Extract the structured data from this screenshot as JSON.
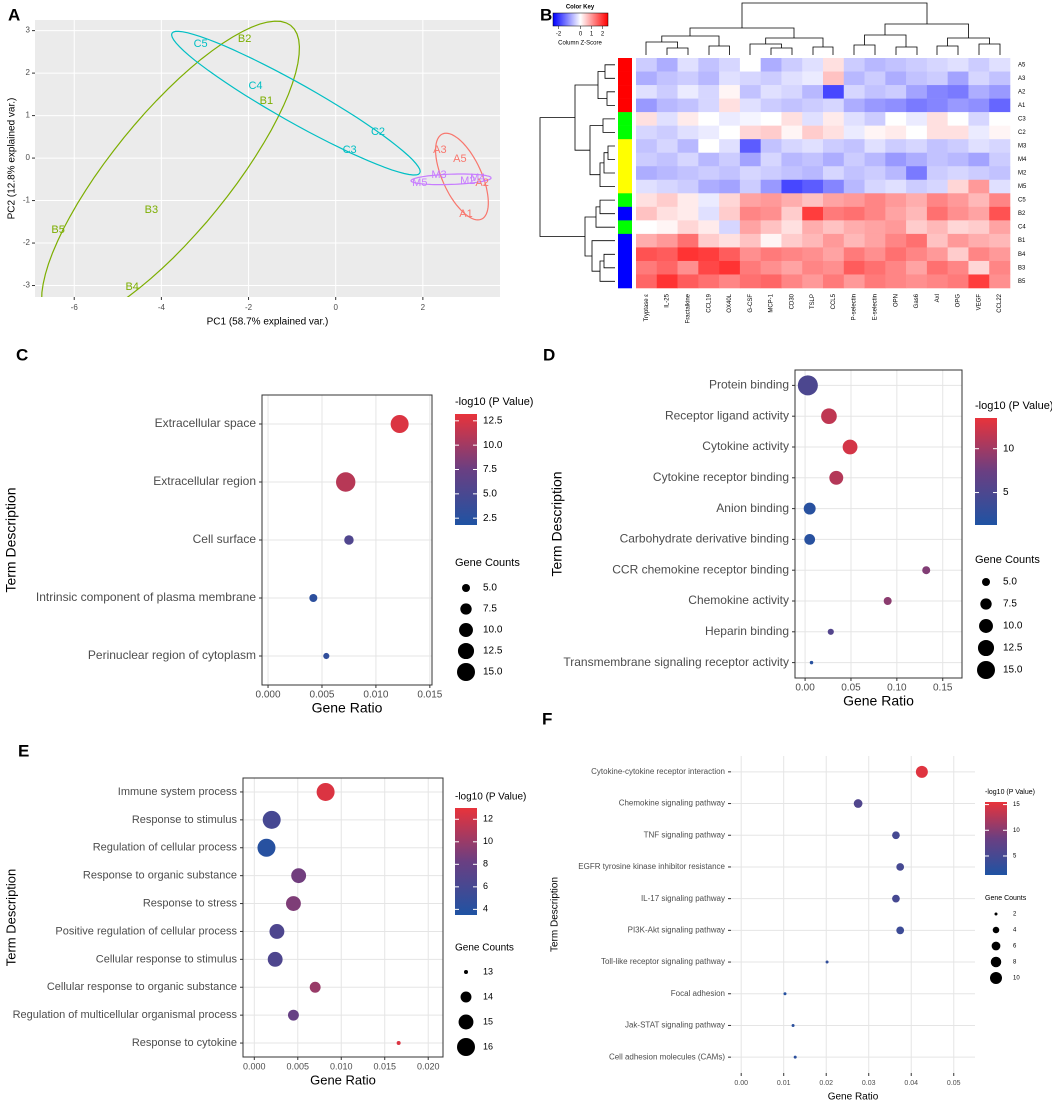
{
  "chart_data": [
    {
      "type": "scatter",
      "panel": "A",
      "x_label": "PC1 (58.7% explained var.)",
      "y_label": "PC2 (12.8% explained var.)",
      "xlim": [
        -6.9,
        3.77
      ],
      "ylim": [
        -3.27,
        3.25
      ],
      "xticks": [
        -6,
        -4,
        -2,
        0,
        2
      ],
      "yticks": [
        -3,
        -2,
        -1,
        0,
        1,
        2,
        3
      ],
      "grid": true,
      "series": [
        {
          "color": "#7cae00",
          "labels": [
            "B2",
            "B1",
            "B3",
            "B5",
            "B4"
          ],
          "x": [
            -2.09,
            -1.59,
            -4.23,
            -6.37,
            -4.67
          ],
          "y": [
            2.8,
            1.34,
            -1.22,
            -1.69,
            -3.04
          ]
        },
        {
          "color": "#00bfc4",
          "labels": [
            "C5",
            "C4",
            "C2",
            "C3"
          ],
          "x": [
            -3.1,
            -1.84,
            0.97,
            0.32
          ],
          "y": [
            2.68,
            1.69,
            0.61,
            0.19
          ]
        },
        {
          "color": "#f8766d",
          "labels": [
            "A3",
            "A5",
            "A2",
            "A1"
          ],
          "x": [
            2.39,
            2.85,
            3.36,
            2.99
          ],
          "y": [
            0.19,
            -0.02,
            -0.59,
            -1.32
          ]
        },
        {
          "color": "#c77cff",
          "labels": [
            "M3",
            "M5",
            "M2",
            "M4"
          ],
          "x": [
            2.37,
            1.93,
            3.03,
            3.26
          ],
          "y": [
            -0.4,
            -0.59,
            -0.54,
            -0.47
          ]
        }
      ]
    },
    {
      "type": "heatmap",
      "panel": "B",
      "key_title": "Color Key",
      "key_label": "Column Z-Score",
      "zlim": [
        -2.5,
        2.5
      ],
      "key_ticks": [
        -2,
        0,
        1,
        2
      ],
      "colors": [
        "#0000ff",
        "#ffffff",
        "#ff0000"
      ],
      "x": [
        "Tryptase ε",
        "IL-25",
        "Fractalkine",
        "CCL19",
        "OX40L",
        "G-CSF",
        "MCP-1",
        "CD30",
        "TSLP",
        "CCL5",
        "P-selectin",
        "E-selectin",
        "OPN",
        "Gas6",
        "Axl",
        "OPG",
        "VEGF",
        "CCL22"
      ],
      "y": [
        "A5",
        "A3",
        "A2",
        "A1",
        "C3",
        "C2",
        "M3",
        "M4",
        "M2",
        "M5",
        "C5",
        "B2",
        "C4",
        "B1",
        "B4",
        "B3",
        "B5"
      ],
      "row_colors": [
        "#ff0000",
        "#ff0000",
        "#ff0000",
        "#ff0000",
        "#00ff00",
        "#00ff00",
        "#ffff00",
        "#ffff00",
        "#ffff00",
        "#ffff00",
        "#00ff00",
        "#0000ff",
        "#00ff00",
        "#0000ff",
        "#0000ff",
        "#0000ff",
        "#0000ff"
      ],
      "values": [
        [
          -0.5,
          -0.8,
          -0.3,
          -0.6,
          -0.4,
          0,
          -0.8,
          -0.5,
          -0.3,
          0.3,
          -0.5,
          -0.7,
          -0.6,
          -0.5,
          -0.4,
          -0.3,
          -0.5,
          -0.3
        ],
        [
          -0.8,
          -0.6,
          -0.5,
          -0.7,
          -0.3,
          -0.4,
          -0.5,
          -0.3,
          -0.2,
          0.6,
          -0.7,
          -0.5,
          -0.8,
          -0.6,
          -0.5,
          -0.9,
          -0.4,
          -0.6
        ],
        [
          -0.3,
          -0.5,
          -0.2,
          -0.4,
          0.1,
          -0.6,
          -0.3,
          -0.4,
          -0.7,
          -1.8,
          -0.4,
          -0.6,
          -0.5,
          -0.9,
          -1.2,
          -1.3,
          -0.8,
          -1
        ],
        [
          -1,
          -0.7,
          -0.6,
          -0.4,
          0.3,
          -0.3,
          -0.5,
          -0.6,
          -0.5,
          -0.4,
          -0.8,
          -1,
          -1.1,
          -1.3,
          -1.2,
          -1,
          -1.1,
          -1.5
        ],
        [
          0.3,
          -0.3,
          0.2,
          0,
          -0.2,
          -0.1,
          0,
          0.3,
          -0.3,
          0.2,
          -0.3,
          -0.5,
          0,
          -0.2,
          0.3,
          0,
          -0.4,
          0
        ],
        [
          -0.4,
          -0.5,
          -0.3,
          -0.2,
          0,
          0.4,
          0.5,
          0.1,
          0.5,
          0.3,
          -0.2,
          0.1,
          0.2,
          0,
          0.3,
          0.3,
          -0.2,
          0.1
        ],
        [
          -0.6,
          -0.4,
          -0.7,
          0,
          -0.3,
          -1.6,
          -0.6,
          -0.4,
          -0.3,
          -0.5,
          -0.6,
          -0.3,
          -0.5,
          -0.4,
          -0.6,
          -0.5,
          -0.3,
          -0.4
        ],
        [
          -0.5,
          -0.6,
          -0.4,
          -0.7,
          -0.5,
          -0.9,
          -0.4,
          -0.7,
          -0.6,
          -0.8,
          -0.5,
          -0.7,
          -1,
          -0.8,
          -0.6,
          -0.7,
          -0.9,
          -0.5
        ],
        [
          -0.8,
          -0.7,
          -0.6,
          -0.5,
          -0.6,
          -0.4,
          -0.5,
          -0.6,
          -0.7,
          -0.4,
          -0.6,
          -0.5,
          -0.7,
          -1.3,
          -0.5,
          -0.4,
          -0.5,
          -0.6
        ],
        [
          -0.3,
          -0.4,
          -0.5,
          -0.8,
          -0.9,
          -0.5,
          -1,
          -1.8,
          -1.6,
          -1.2,
          -0.7,
          -0.4,
          -0.3,
          -0.5,
          -0.4,
          0.4,
          1,
          -0.3
        ],
        [
          0.3,
          0.5,
          0.2,
          -0.2,
          0.4,
          0.9,
          1,
          0.8,
          0.6,
          0.9,
          1,
          1.2,
          1,
          0.8,
          1.2,
          1,
          0.7,
          1.2
        ],
        [
          0.6,
          0.3,
          0.2,
          -0.3,
          0.5,
          1.2,
          1.1,
          0.5,
          1.9,
          1.3,
          1.4,
          1.2,
          0.9,
          0.7,
          1.4,
          1.1,
          0.9,
          1.7
        ],
        [
          0,
          0.1,
          0.4,
          0.2,
          -0.4,
          0.9,
          0.6,
          0.3,
          0.8,
          0.6,
          0.8,
          0.9,
          1,
          0.5,
          0.7,
          0.4,
          0.5,
          0.9
        ],
        [
          0.8,
          1,
          1.4,
          0.5,
          0.3,
          0.6,
          0.1,
          0.5,
          0.7,
          1,
          0.7,
          0.9,
          1.2,
          1.4,
          0.6,
          1,
          0.8,
          0.7
        ],
        [
          1.7,
          1.6,
          2,
          1.9,
          1.6,
          1.1,
          1.3,
          1.2,
          1.1,
          0.9,
          1.3,
          1.1,
          1.4,
          1.2,
          1,
          0.5,
          1.2,
          1
        ],
        [
          1.3,
          1.5,
          1.1,
          1.8,
          2,
          1.3,
          1.1,
          0.9,
          1.2,
          1.1,
          1.6,
          1.4,
          1.2,
          0.9,
          1.4,
          1.2,
          0.4,
          1.2
        ],
        [
          1.5,
          2,
          1.6,
          1.4,
          1.2,
          1.4,
          1.5,
          1.2,
          1,
          1.3,
          1,
          1.3,
          1.2,
          1.1,
          1.2,
          1.3,
          1.9,
          1.1
        ]
      ]
    },
    {
      "type": "dot",
      "panel": "C",
      "x_label": "Gene Ratio",
      "y_label": "Term Description",
      "categories": [
        "Extracellular space",
        "Extracellular region",
        "Cell surface",
        "Intrinsic component of plasma membrane",
        "Perinuclear region of cytoplasm"
      ],
      "x": [
        0.0122,
        0.0072,
        0.0075,
        0.0042,
        0.0054
      ],
      "p_values": [
        12.6,
        11,
        5.5,
        2.8,
        3.2
      ],
      "gene_counts": [
        15,
        17,
        6,
        5,
        4
      ],
      "xlim": [
        -0.00056,
        0.0152
      ],
      "xticks": [
        {
          "value": 0,
          "label": "0.000"
        },
        0.005,
        {
          "value": 0.01,
          "label": "0.010"
        },
        0.015
      ],
      "grid": true,
      "color_title": "-log10 (P Value)",
      "clim": [
        1.8,
        13.2
      ],
      "color_ticks": [
        2.5,
        {
          "value": 5,
          "label": "5.0"
        },
        7.5,
        {
          "value": 10,
          "label": "10.0"
        },
        12.5
      ],
      "colors": [
        "#1f53a3",
        "#6a3f82",
        "#e8333b"
      ],
      "size_title": "Gene Counts",
      "size_ticks": [
        {
          "value": 5,
          "label": "5.0"
        },
        7.5,
        {
          "value": 10,
          "label": "10.0"
        },
        12.5,
        {
          "value": 15,
          "label": "15.0"
        }
      ]
    },
    {
      "type": "dot",
      "panel": "D",
      "x_label": "Gene Ratio",
      "y_label": "Term Description",
      "categories": [
        "Protein binding",
        "Receptor ligand activity",
        "Cytokine activity",
        "Cytokine receptor binding",
        "Anion binding",
        "Carbohydrate derivative binding",
        "CCR chemokine receptor binding",
        "Chemokine activity",
        "Heparin binding",
        "Transmembrane signaling receptor activity"
      ],
      "x": [
        0.003,
        0.026,
        0.049,
        0.034,
        0.005,
        0.005,
        0.132,
        0.09,
        0.028,
        0.007
      ],
      "p_values": [
        5,
        11.5,
        12.5,
        11,
        2,
        2,
        8.5,
        9,
        5.5,
        2
      ],
      "gene_counts": [
        18,
        12,
        11,
        10,
        8,
        7,
        5,
        5,
        4,
        3
      ],
      "xlim": [
        -0.011,
        0.171
      ],
      "xticks": [
        {
          "value": 0,
          "label": "0.00"
        },
        0.05,
        {
          "value": 0.1,
          "label": "0.10"
        },
        0.15
      ],
      "grid": true,
      "color_title": "-log10 (P Value)",
      "clim": [
        1.3,
        13.5
      ],
      "color_ticks": [
        5,
        10
      ],
      "colors": [
        "#1f53a3",
        "#6a3f82",
        "#e8333b"
      ],
      "size_title": "Gene Counts",
      "size_ticks": [
        {
          "value": 5,
          "label": "5.0"
        },
        7.5,
        {
          "value": 10,
          "label": "10.0"
        },
        12.5,
        {
          "value": 15,
          "label": "15.0"
        }
      ]
    },
    {
      "type": "dot",
      "panel": "E",
      "x_label": "Gene Ratio",
      "y_label": "Term Description",
      "categories": [
        "Immune system process",
        "Response to stimulus",
        "Regulation of cellular process",
        "Response to organic substance",
        "Response to stress",
        "Positive regulation of cellular process",
        "Cellular response to stimulus",
        "Cellular response to organic substance",
        "Regulation of multicellular organismal process",
        "Response to cytokine"
      ],
      "x": [
        0.0082,
        0.002,
        0.0014,
        0.0051,
        0.0045,
        0.0026,
        0.0024,
        0.007,
        0.0045,
        0.0166
      ],
      "p_values": [
        12.5,
        6,
        4,
        8.5,
        9,
        6.5,
        6.5,
        10,
        8,
        12.5
      ],
      "gene_counts": [
        16,
        16,
        16,
        15,
        15,
        15,
        15,
        14,
        14,
        13
      ],
      "xlim": [
        -0.0013,
        0.0217
      ],
      "xticks": [
        {
          "value": 0,
          "label": "0.000"
        },
        0.005,
        {
          "value": 0.01,
          "label": "0.010"
        },
        0.015,
        {
          "value": 0.02,
          "label": "0.020"
        }
      ],
      "grid": true,
      "color_title": "-log10 (P Value)",
      "clim": [
        3.5,
        13
      ],
      "color_ticks": [
        4,
        6,
        8,
        10,
        12
      ],
      "colors": [
        "#1f53a3",
        "#6a3f82",
        "#e8333b"
      ],
      "size_title": "Gene Counts",
      "size_ticks": [
        13,
        14,
        15,
        16
      ]
    },
    {
      "type": "dot",
      "panel": "F",
      "x_label": "Gene Ratio",
      "y_label": "Term Description",
      "categories": [
        "Cytokine-cytokine receptor interaction",
        "Chemokine signaling pathway",
        "TNF signaling pathway",
        "EGFR tyrosine kinase inhibitor resistance",
        "IL-17 signaling pathway",
        "PI3K-Akt signaling pathway",
        "Toll-like receptor signaling pathway",
        "Focal adhesion",
        "Jak-STAT signaling pathway",
        "Cell adhesion molecules (CAMs)"
      ],
      "x": [
        0.0425,
        0.0275,
        0.0364,
        0.0374,
        0.0364,
        0.0374,
        0.0202,
        0.0103,
        0.0122,
        0.0127
      ],
      "p_values": [
        15,
        6,
        5,
        5,
        5,
        4,
        3,
        2,
        2.5,
        2.5
      ],
      "gene_counts": [
        10,
        6,
        5,
        5,
        5,
        5,
        2,
        2,
        2,
        2
      ],
      "xlim": [
        -0.0024,
        0.055
      ],
      "xticks": [
        {
          "value": 0,
          "label": "0.00"
        },
        0.01,
        0.02,
        0.03,
        0.04,
        0.05
      ],
      "grid": true,
      "color_title": "-log10 (P Value)",
      "clim": [
        1.3,
        15.5
      ],
      "color_ticks": [
        5,
        10,
        15
      ],
      "colors": [
        "#1f53a3",
        "#6a3f82",
        "#e8333b"
      ],
      "size_title": "Gene Counts",
      "size_ticks": [
        2,
        4,
        6,
        8,
        10
      ]
    }
  ]
}
